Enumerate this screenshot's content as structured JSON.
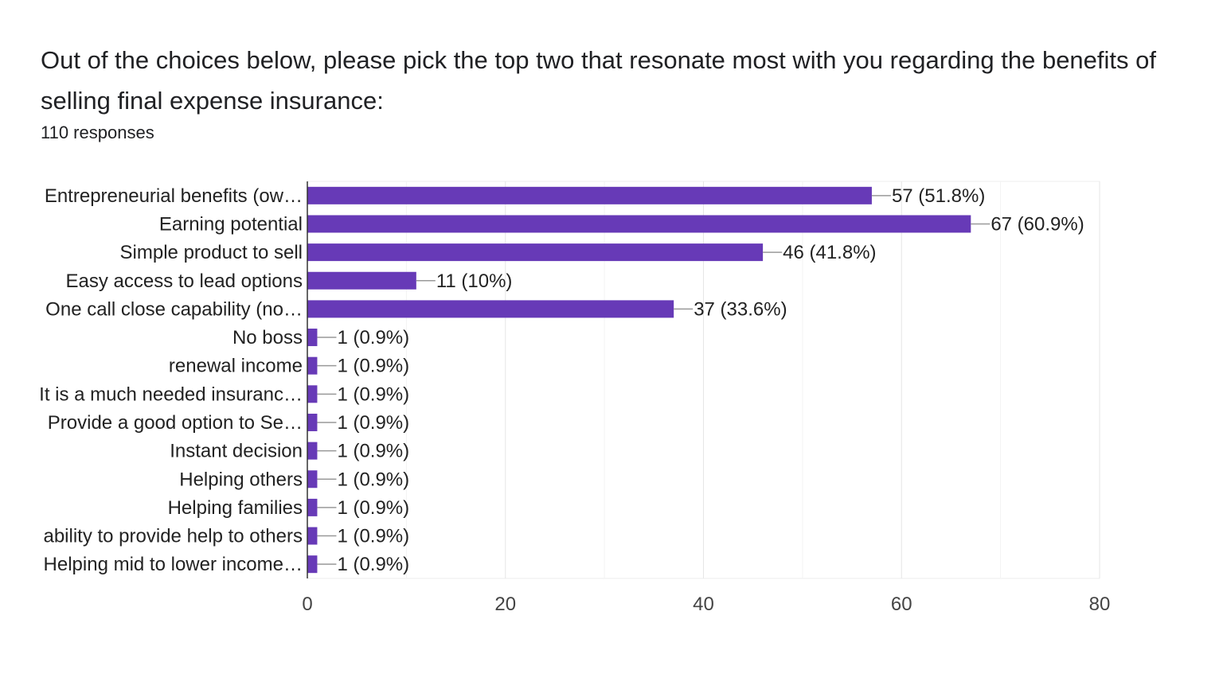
{
  "chart_data": {
    "type": "bar",
    "orientation": "horizontal",
    "title": "Out of the choices below, please pick the top two that resonate most with you regarding the benefits of selling final expense insurance:",
    "subtitle": "110 responses",
    "categories": [
      "Entrepreneurial benefits (ow…",
      "Earning potential",
      "Simple product to sell",
      "Easy access to lead options",
      "One call close capability (no…",
      "No boss",
      "renewal income",
      "It is a much needed insuranc…",
      "Provide a good option to Se…",
      "Instant decision",
      "Helping others",
      "Helping families",
      "ability to provide help to others",
      "Helping mid to lower income…"
    ],
    "values": [
      57,
      67,
      46,
      11,
      37,
      1,
      1,
      1,
      1,
      1,
      1,
      1,
      1,
      1
    ],
    "data_labels": [
      "57 (51.8%)",
      "67 (60.9%)",
      "46 (41.8%)",
      "11 (10%)",
      "37 (33.6%)",
      "1 (0.9%)",
      "1 (0.9%)",
      "1 (0.9%)",
      "1 (0.9%)",
      "1 (0.9%)",
      "1 (0.9%)",
      "1 (0.9%)",
      "1 (0.9%)",
      "1 (0.9%)"
    ],
    "xlim": [
      0,
      80
    ],
    "xticks": [
      "0",
      "20",
      "40",
      "60",
      "80"
    ],
    "xtick_values": [
      0,
      20,
      40,
      60,
      80
    ],
    "minor_grid_step": 10,
    "grid": true,
    "bar_color": "#673ab7"
  }
}
